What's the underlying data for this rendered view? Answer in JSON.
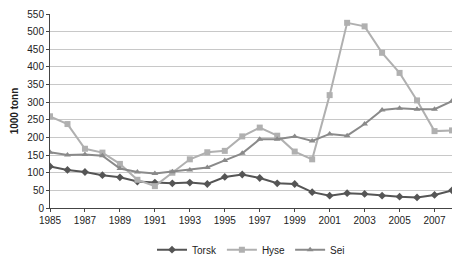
{
  "chart_data": {
    "type": "line",
    "y_label": "1000 tonn",
    "x": [
      1985,
      1986,
      1987,
      1988,
      1989,
      1990,
      1991,
      1992,
      1993,
      1994,
      1995,
      1996,
      1997,
      1998,
      1999,
      2000,
      2001,
      2002,
      2003,
      2004,
      2005,
      2006,
      2007,
      2008
    ],
    "series": [
      {
        "name": "Torsk",
        "color": "#555555",
        "marker": "diamond",
        "values": [
          118,
          108,
          102,
          93,
          87,
          75,
          72,
          70,
          72,
          68,
          88,
          95,
          85,
          70,
          68,
          45,
          35,
          42,
          40,
          35,
          32,
          30,
          37,
          50
        ]
      },
      {
        "name": "Hyse",
        "color": "#b0b0b0",
        "marker": "square",
        "values": [
          260,
          238,
          168,
          157,
          125,
          80,
          62,
          100,
          138,
          158,
          162,
          203,
          228,
          205,
          160,
          138,
          320,
          525,
          515,
          440,
          383,
          305,
          218,
          220
        ]
      },
      {
        "name": "Sei",
        "color": "#8a8a8a",
        "marker": "triangle",
        "values": [
          158,
          150,
          152,
          148,
          112,
          102,
          98,
          103,
          108,
          115,
          135,
          155,
          195,
          195,
          203,
          190,
          210,
          205,
          238,
          278,
          283,
          280,
          280,
          303
        ]
      }
    ],
    "xlim": [
      1985,
      2008
    ],
    "xticks": [
      1985,
      1987,
      1989,
      1991,
      1993,
      1995,
      1997,
      1999,
      2001,
      2003,
      2005,
      2007
    ],
    "ylim": [
      0,
      550
    ],
    "yticks": [
      0,
      50,
      100,
      150,
      200,
      250,
      300,
      350,
      400,
      450,
      500,
      550
    ],
    "grid": true,
    "legend": "bottom"
  }
}
